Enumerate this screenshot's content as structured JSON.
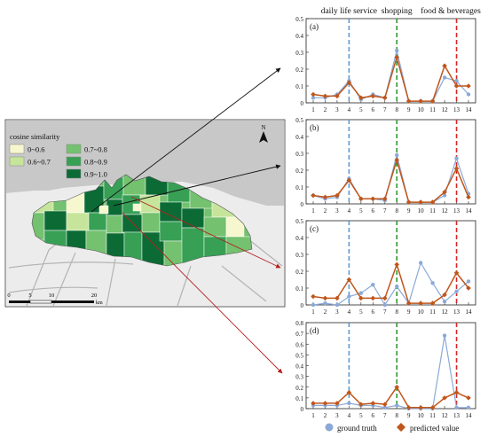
{
  "legend_box": {
    "title": "cosine  similarity",
    "items": [
      {
        "label": "0~0.6",
        "color": "#f7f7cf"
      },
      {
        "label": "0.6~0.7",
        "color": "#c6e59a"
      },
      {
        "label": "0.7~0.8",
        "color": "#74c16f"
      },
      {
        "label": "0.8~0.9",
        "color": "#37a055"
      },
      {
        "label": "0.9~1.0",
        "color": "#0c6b35"
      }
    ]
  },
  "north_arrow": {
    "label": "N"
  },
  "scale_bar": {
    "ticks": [
      "0",
      "5",
      "10",
      "20"
    ],
    "unit": "km"
  },
  "category_labels": [
    {
      "label": "daily life service",
      "x": 4,
      "color": "#5b9bd5"
    },
    {
      "label": "shopping",
      "x": 8,
      "color": "#2e9a2e"
    },
    {
      "label": "food & beverages",
      "x": 13,
      "color": "#d62728"
    }
  ],
  "footer_legend": {
    "ground_truth": "ground truth",
    "predicted": "predicted value",
    "ground_truth_color": "#8ba9d8",
    "predicted_color": "#c0561b"
  },
  "chart_data": [
    {
      "type": "line",
      "panel_label": "(a)",
      "x": [
        1,
        2,
        3,
        4,
        5,
        6,
        7,
        8,
        9,
        10,
        11,
        12,
        13,
        14
      ],
      "ylim": [
        0,
        0.5
      ],
      "yticks": [
        0,
        0.1,
        0.2,
        0.3,
        0.4,
        0.5
      ],
      "series": [
        {
          "name": "ground truth",
          "values": [
            0.03,
            0.03,
            0.05,
            0.13,
            0.02,
            0.05,
            0.03,
            0.31,
            0.01,
            0.01,
            0.01,
            0.15,
            0.13,
            0.05
          ]
        },
        {
          "name": "predicted value",
          "values": [
            0.05,
            0.04,
            0.04,
            0.12,
            0.03,
            0.04,
            0.03,
            0.27,
            0.01,
            0.01,
            0.01,
            0.22,
            0.1,
            0.1
          ]
        }
      ]
    },
    {
      "type": "line",
      "panel_label": "(b)",
      "x": [
        1,
        2,
        3,
        4,
        5,
        6,
        7,
        8,
        9,
        10,
        11,
        12,
        13,
        14
      ],
      "ylim": [
        0,
        0.5
      ],
      "yticks": [
        0,
        0.1,
        0.2,
        0.3,
        0.4,
        0.5
      ],
      "series": [
        {
          "name": "ground truth",
          "values": [
            0.05,
            0.03,
            0.04,
            0.15,
            0.03,
            0.03,
            0.02,
            0.29,
            0.01,
            0.01,
            0.01,
            0.05,
            0.27,
            0.06
          ]
        },
        {
          "name": "predicted value",
          "values": [
            0.05,
            0.04,
            0.05,
            0.14,
            0.03,
            0.03,
            0.03,
            0.26,
            0.01,
            0.01,
            0.01,
            0.07,
            0.21,
            0.04
          ]
        }
      ]
    },
    {
      "type": "line",
      "panel_label": "(c)",
      "x": [
        1,
        2,
        3,
        4,
        5,
        6,
        7,
        8,
        9,
        10,
        11,
        12,
        13,
        14
      ],
      "ylim": [
        0,
        0.5
      ],
      "yticks": [
        0,
        0.1,
        0.2,
        0.3,
        0.4,
        0.5
      ],
      "series": [
        {
          "name": "ground truth",
          "values": [
            0.0,
            0.01,
            0.0,
            0.05,
            0.07,
            0.12,
            0.0,
            0.11,
            0.01,
            0.25,
            0.13,
            0.02,
            0.08,
            0.14
          ]
        },
        {
          "name": "predicted value",
          "values": [
            0.05,
            0.04,
            0.04,
            0.15,
            0.04,
            0.04,
            0.04,
            0.24,
            0.01,
            0.01,
            0.01,
            0.06,
            0.19,
            0.1
          ]
        }
      ]
    },
    {
      "type": "line",
      "panel_label": "(d)",
      "x": [
        1,
        2,
        3,
        4,
        5,
        6,
        7,
        8,
        9,
        10,
        11,
        12,
        13,
        14
      ],
      "ylim": [
        0,
        0.8
      ],
      "yticks": [
        0,
        0.1,
        0.2,
        0.3,
        0.4,
        0.5,
        0.6,
        0.7,
        0.8
      ],
      "series": [
        {
          "name": "ground truth",
          "values": [
            0.03,
            0.03,
            0.03,
            0.05,
            0.03,
            0.03,
            0.01,
            0.03,
            0.0,
            0.0,
            0.0,
            0.68,
            0.01,
            0.01
          ]
        },
        {
          "name": "predicted value",
          "values": [
            0.05,
            0.05,
            0.05,
            0.15,
            0.04,
            0.05,
            0.04,
            0.2,
            0.01,
            0.01,
            0.01,
            0.1,
            0.15,
            0.1
          ]
        }
      ]
    }
  ]
}
